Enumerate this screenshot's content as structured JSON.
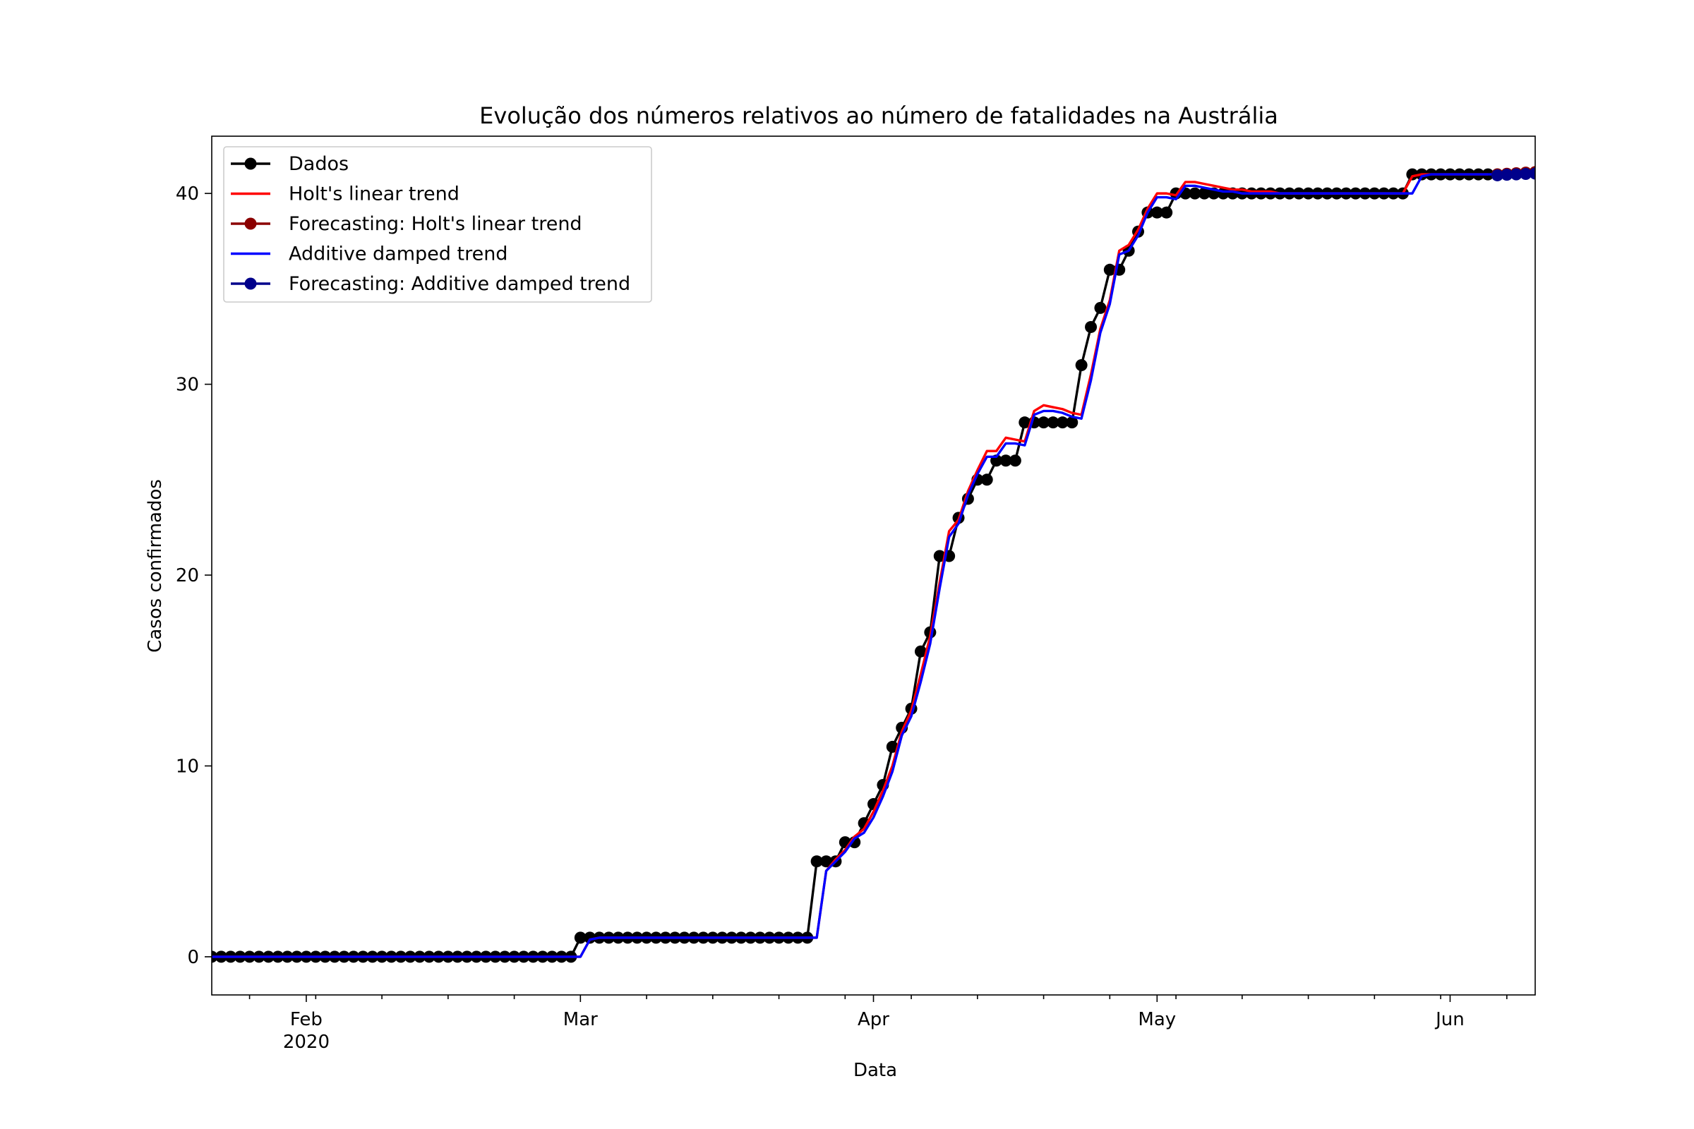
{
  "chart_data": {
    "type": "line",
    "title": "Evolução dos números relativos ao número de fatalidades na Austrália",
    "xlabel": "Data",
    "ylabel": "Casos confirmados",
    "x_range": [
      "2020-01-22",
      "2020-06-10"
    ],
    "ylim": [
      -2,
      43
    ],
    "grid": false,
    "legend_position": "top-left",
    "x_ticks": [
      {
        "date": "2020-02-01",
        "label": "Feb",
        "sublabel": "2020"
      },
      {
        "date": "2020-03-01",
        "label": "Mar"
      },
      {
        "date": "2020-04-01",
        "label": "Apr"
      },
      {
        "date": "2020-05-01",
        "label": "May"
      },
      {
        "date": "2020-06-01",
        "label": "Jun"
      }
    ],
    "y_ticks": [
      {
        "value": 0,
        "label": "0"
      },
      {
        "value": 10,
        "label": "10"
      },
      {
        "value": 20,
        "label": "20"
      },
      {
        "value": 30,
        "label": "30"
      },
      {
        "value": 40,
        "label": "40"
      }
    ],
    "start_date": "2020-01-22",
    "series": [
      {
        "name": "Dados",
        "color": "#000000",
        "marker": "circle",
        "values": [
          0,
          0,
          0,
          0,
          0,
          0,
          0,
          0,
          0,
          0,
          0,
          0,
          0,
          0,
          0,
          0,
          0,
          0,
          0,
          0,
          0,
          0,
          0,
          0,
          0,
          0,
          0,
          0,
          0,
          0,
          0,
          0,
          0,
          0,
          0,
          0,
          0,
          0,
          0,
          1,
          1,
          1,
          1,
          1,
          1,
          1,
          1,
          1,
          1,
          1,
          1,
          1,
          1,
          1,
          1,
          1,
          1,
          1,
          1,
          1,
          1,
          1,
          1,
          1,
          5,
          5,
          5,
          6,
          6,
          7,
          8,
          9,
          11,
          12,
          13,
          16,
          17,
          21,
          21,
          23,
          24,
          25,
          25,
          26,
          26,
          26,
          28,
          28,
          28,
          28,
          28,
          28,
          31,
          33,
          34,
          36,
          36,
          37,
          38,
          39,
          39,
          39,
          40,
          40,
          40,
          40,
          40,
          40,
          40,
          40,
          40,
          40,
          40,
          40,
          40,
          40,
          40,
          40,
          40,
          40,
          40,
          40,
          40,
          40,
          40,
          40,
          40,
          41,
          41,
          41,
          41,
          41,
          41,
          41,
          41,
          41,
          41
        ]
      },
      {
        "name": "Holt's linear trend",
        "color": "#ff0000",
        "marker": "none",
        "values": [
          0,
          0,
          0,
          0,
          0,
          0,
          0,
          0,
          0,
          0,
          0,
          0,
          0,
          0,
          0,
          0,
          0,
          0,
          0,
          0,
          0,
          0,
          0,
          0,
          0,
          0,
          0,
          0,
          0,
          0,
          0,
          0,
          0,
          0,
          0,
          0,
          0,
          0,
          0,
          0,
          0.9,
          1,
          1,
          1,
          1,
          1,
          1,
          1,
          1,
          1,
          1,
          1,
          1,
          1,
          1,
          1,
          1,
          1,
          1,
          1,
          1,
          1,
          1,
          1,
          1,
          4.5,
          5.1,
          5.6,
          6.3,
          6.7,
          7.6,
          8.7,
          10,
          11.8,
          12.9,
          14.8,
          16.8,
          19.6,
          22.3,
          22.9,
          24.4,
          25.5,
          26.5,
          26.5,
          27.2,
          27.1,
          27,
          28.6,
          28.9,
          28.8,
          28.7,
          28.5,
          28.4,
          30.5,
          32.9,
          34.4,
          37,
          37.3,
          38.1,
          39.2,
          40,
          40,
          39.9,
          40.6,
          40.6,
          40.5,
          40.4,
          40.3,
          40.2,
          40.2,
          40.1,
          40.1,
          40.1,
          40,
          40,
          40,
          40,
          40,
          40,
          40,
          40,
          40,
          40,
          40,
          40,
          40,
          40,
          40.9,
          41,
          41,
          41,
          41,
          41,
          41,
          41,
          41
        ]
      },
      {
        "name": "Forecasting: Holt's linear trend",
        "color": "#8b0000",
        "marker": "circle",
        "values": [
          null,
          null,
          null,
          null,
          null,
          null,
          null,
          null,
          null,
          null,
          null,
          null,
          null,
          null,
          null,
          null,
          null,
          null,
          null,
          null,
          null,
          null,
          null,
          null,
          null,
          null,
          null,
          null,
          null,
          null,
          null,
          null,
          null,
          null,
          null,
          null,
          null,
          null,
          null,
          null,
          null,
          null,
          null,
          null,
          null,
          null,
          null,
          null,
          null,
          null,
          null,
          null,
          null,
          null,
          null,
          null,
          null,
          null,
          null,
          null,
          null,
          null,
          null,
          null,
          null,
          null,
          null,
          null,
          null,
          null,
          null,
          null,
          null,
          null,
          null,
          null,
          null,
          null,
          null,
          null,
          null,
          null,
          null,
          null,
          null,
          null,
          null,
          null,
          null,
          null,
          null,
          null,
          null,
          null,
          null,
          null,
          null,
          null,
          null,
          null,
          null,
          null,
          null,
          null,
          null,
          null,
          null,
          null,
          null,
          null,
          null,
          null,
          null,
          null,
          null,
          null,
          null,
          null,
          null,
          null,
          null,
          null,
          null,
          null,
          null,
          null,
          null,
          null,
          null,
          null,
          null,
          null,
          null,
          null,
          null,
          null,
          41,
          41.03,
          41.06,
          41.09,
          41.12,
          41.15,
          41.18,
          41.21,
          41.24,
          41.27
        ]
      },
      {
        "name": "Additive damped trend",
        "color": "#0000ff",
        "marker": "none",
        "values": [
          0,
          0,
          0,
          0,
          0,
          0,
          0,
          0,
          0,
          0,
          0,
          0,
          0,
          0,
          0,
          0,
          0,
          0,
          0,
          0,
          0,
          0,
          0,
          0,
          0,
          0,
          0,
          0,
          0,
          0,
          0,
          0,
          0,
          0,
          0,
          0,
          0,
          0,
          0,
          0,
          0.9,
          1,
          1,
          1,
          1,
          1,
          1,
          1,
          1,
          1,
          1,
          1,
          1,
          1,
          1,
          1,
          1,
          1,
          1,
          1,
          1,
          1,
          1,
          1,
          1,
          4.5,
          5,
          5.5,
          6.2,
          6.5,
          7.3,
          8.4,
          9.7,
          11.6,
          12.6,
          14.4,
          16.4,
          19.3,
          22,
          22.7,
          24.2,
          25.3,
          26.2,
          26.2,
          26.9,
          26.9,
          26.8,
          28.4,
          28.6,
          28.6,
          28.5,
          28.3,
          28.2,
          30.2,
          32.7,
          34.2,
          36.8,
          37,
          37.8,
          39,
          39.8,
          39.8,
          39.7,
          40.4,
          40.4,
          40.3,
          40.2,
          40.1,
          40.1,
          40,
          40,
          40,
          40,
          40,
          40,
          40,
          40,
          40,
          40,
          40,
          40,
          40,
          40,
          40,
          40,
          40,
          40,
          40,
          40.9,
          41,
          41,
          41,
          41,
          41,
          41,
          41,
          41
        ]
      },
      {
        "name": "Forecasting: Additive damped trend",
        "color": "#00008b",
        "marker": "circle",
        "values": [
          null,
          null,
          null,
          null,
          null,
          null,
          null,
          null,
          null,
          null,
          null,
          null,
          null,
          null,
          null,
          null,
          null,
          null,
          null,
          null,
          null,
          null,
          null,
          null,
          null,
          null,
          null,
          null,
          null,
          null,
          null,
          null,
          null,
          null,
          null,
          null,
          null,
          null,
          null,
          null,
          null,
          null,
          null,
          null,
          null,
          null,
          null,
          null,
          null,
          null,
          null,
          null,
          null,
          null,
          null,
          null,
          null,
          null,
          null,
          null,
          null,
          null,
          null,
          null,
          null,
          null,
          null,
          null,
          null,
          null,
          null,
          null,
          null,
          null,
          null,
          null,
          null,
          null,
          null,
          null,
          null,
          null,
          null,
          null,
          null,
          null,
          null,
          null,
          null,
          null,
          null,
          null,
          null,
          null,
          null,
          null,
          null,
          null,
          null,
          null,
          null,
          null,
          null,
          null,
          null,
          null,
          null,
          null,
          null,
          null,
          null,
          null,
          null,
          null,
          null,
          null,
          null,
          null,
          null,
          null,
          null,
          null,
          null,
          null,
          null,
          null,
          null,
          null,
          null,
          null,
          null,
          null,
          null,
          null,
          null,
          null,
          40.95,
          40.98,
          41,
          41.02,
          41.04,
          41.06,
          41.07,
          41.08,
          41.09,
          41.1
        ]
      }
    ]
  }
}
